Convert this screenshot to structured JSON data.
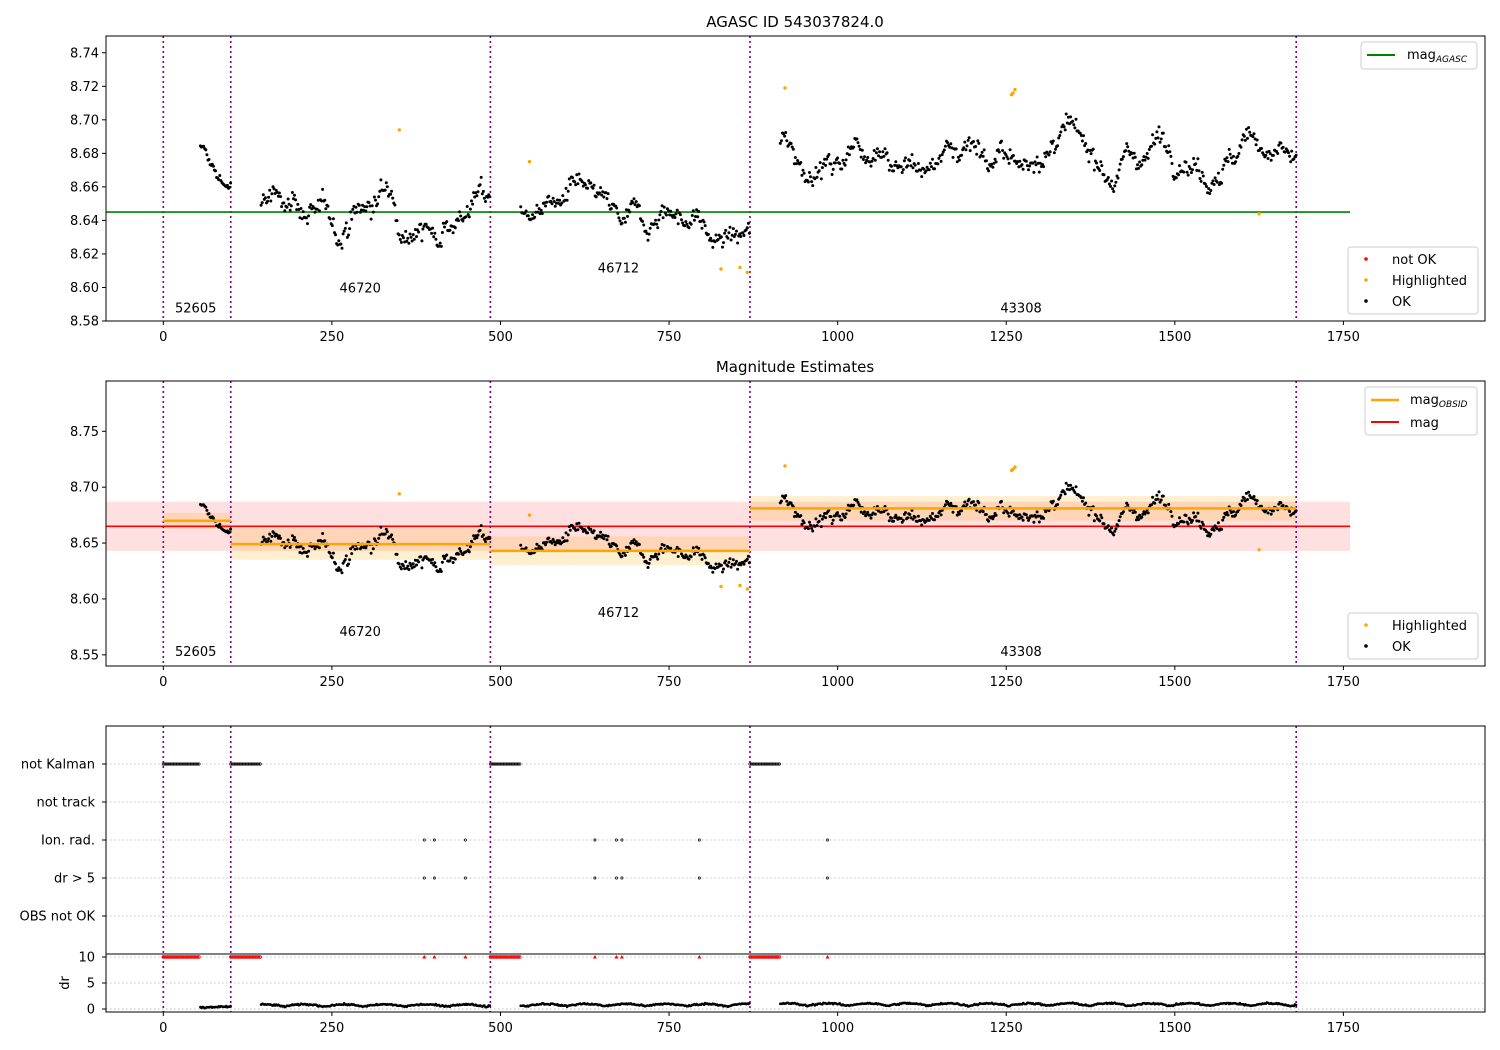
{
  "chart_data": [
    {
      "type": "scatter",
      "title": "AGASC ID 543037824.0",
      "xlim": [
        -85,
        1960
      ],
      "ylim": [
        8.58,
        8.75
      ],
      "x_ticks": [
        0,
        250,
        500,
        750,
        1000,
        1250,
        1500,
        1750
      ],
      "y_ticks": [
        8.58,
        8.6,
        8.62,
        8.64,
        8.66,
        8.68,
        8.7,
        8.72,
        8.74
      ],
      "y_tick_labels": [
        "8.58",
        "8.60",
        "8.62",
        "8.64",
        "8.66",
        "8.68",
        "8.70",
        "8.72",
        "8.74"
      ],
      "legend_lines": [
        {
          "name": "mag",
          "sub": "AGASC",
          "color": "#008000"
        }
      ],
      "legend_points": [
        {
          "name": "not OK",
          "color": "#ff0000"
        },
        {
          "name": "Highlighted",
          "color": "#ffa500"
        },
        {
          "name": "OK",
          "color": "#000000"
        }
      ],
      "lines": [
        {
          "name": "mag_AGASC",
          "color": "#008000",
          "x": [
            -85,
            1760
          ],
          "y": [
            8.645,
            8.645
          ]
        }
      ],
      "segments_trend": [
        {
          "x": [
            55,
            100
          ],
          "y": [
            8.677,
            8.664
          ],
          "sd": 0.007
        },
        {
          "x": [
            145,
            485
          ],
          "y": [
            8.645,
            8.645
          ],
          "sd": 0.012
        },
        {
          "x": [
            530,
            870
          ],
          "y": [
            8.655,
            8.632
          ],
          "sd": 0.01
        },
        {
          "x": [
            915,
            1680
          ],
          "y": [
            8.68,
            8.68
          ],
          "sd": 0.011
        }
      ],
      "highlighted_points": [
        {
          "x": 350,
          "y": 8.694
        },
        {
          "x": 543,
          "y": 8.675
        },
        {
          "x": 827,
          "y": 8.611
        },
        {
          "x": 855,
          "y": 8.612
        },
        {
          "x": 866,
          "y": 8.609
        },
        {
          "x": 922,
          "y": 8.719
        },
        {
          "x": 1258,
          "y": 8.715
        },
        {
          "x": 1260,
          "y": 8.716
        },
        {
          "x": 1263,
          "y": 8.718
        },
        {
          "x": 1625,
          "y": 8.644
        }
      ],
      "annotations": [
        {
          "text": "52605",
          "x": 48,
          "y": 8.585
        },
        {
          "text": "46720",
          "x": 292,
          "y": 8.597
        },
        {
          "text": "46712",
          "x": 675,
          "y": 8.609
        },
        {
          "text": "43308",
          "x": 1272,
          "y": 8.585
        }
      ]
    },
    {
      "type": "scatter",
      "title": "Magnitude Estimates",
      "xlim": [
        -85,
        1960
      ],
      "ylim": [
        8.54,
        8.795
      ],
      "x_ticks": [
        0,
        250,
        500,
        750,
        1000,
        1250,
        1500,
        1750
      ],
      "y_ticks": [
        8.55,
        8.6,
        8.65,
        8.7,
        8.75
      ],
      "y_tick_labels": [
        "8.55",
        "8.60",
        "8.65",
        "8.70",
        "8.75"
      ],
      "legend_lines": [
        {
          "name": "mag",
          "sub": "OBSID",
          "color": "#ffa500"
        },
        {
          "name": "mag",
          "sub": "",
          "color": "#ff0000"
        }
      ],
      "legend_points": [
        {
          "name": "Highlighted",
          "color": "#ffa500"
        },
        {
          "name": "OK",
          "color": "#000000"
        }
      ],
      "mag_line": {
        "x": [
          -85,
          1760
        ],
        "y": 8.665,
        "band": [
          8.643,
          8.687
        ]
      },
      "obsid_mags": [
        {
          "x": [
            0,
            100
          ],
          "y": 8.67,
          "band": [
            8.663,
            8.677
          ]
        },
        {
          "x": [
            100,
            485
          ],
          "y": 8.649,
          "band": [
            8.635,
            8.663
          ]
        },
        {
          "x": [
            485,
            870
          ],
          "y": 8.643,
          "band": [
            8.63,
            8.656
          ]
        },
        {
          "x": [
            870,
            1680
          ],
          "y": 8.681,
          "band": [
            8.67,
            8.692
          ]
        }
      ],
      "annotations": [
        {
          "text": "52605",
          "x": 48,
          "y": 8.549
        },
        {
          "text": "46720",
          "x": 292,
          "y": 8.567
        },
        {
          "text": "46712",
          "x": 675,
          "y": 8.584
        },
        {
          "text": "43308",
          "x": 1272,
          "y": 8.549
        }
      ]
    },
    {
      "type": "scatter",
      "title": "",
      "xlim": [
        -85,
        1960
      ],
      "x_ticks": [
        0,
        250,
        500,
        750,
        1000,
        1250,
        1500,
        1750
      ],
      "flag_rows": [
        "not Kalman",
        "not track",
        "Ion. rad.",
        "dr > 5",
        "OBS not OK"
      ],
      "flag_ranges": [
        {
          "row": "not Kalman",
          "x": [
            0,
            55
          ]
        },
        {
          "row": "not Kalman",
          "x": [
            100,
            145
          ]
        },
        {
          "row": "not Kalman",
          "x": [
            485,
            530
          ]
        },
        {
          "row": "not Kalman",
          "x": [
            870,
            915
          ]
        }
      ],
      "flag_points": {
        "Ion. rad.": [
          387,
          402,
          448,
          640,
          672,
          680,
          795,
          985
        ],
        "dr > 5": [
          387,
          402,
          448,
          640,
          672,
          680,
          795,
          985
        ]
      },
      "dr_ylabel": "dr",
      "dr_ylim": [
        -0.5,
        10.5
      ],
      "dr_ticks": [
        0,
        5,
        10
      ],
      "dr_tick_labels": [
        "0",
        "5",
        "10"
      ],
      "dr_clipped_x_ranges": [
        [
          0,
          55
        ],
        [
          100,
          145
        ],
        [
          485,
          530
        ],
        [
          870,
          915
        ]
      ],
      "dr_clipped_extra_x": [
        387,
        402,
        448,
        640,
        672,
        680,
        795,
        985
      ],
      "dr_clipped_value": 10,
      "dr_data_ranges": [
        {
          "x": [
            55,
            100
          ],
          "level": 0.4
        },
        {
          "x": [
            145,
            485
          ],
          "level": 0.8
        },
        {
          "x": [
            530,
            870
          ],
          "level": 0.9
        },
        {
          "x": [
            915,
            1680
          ],
          "level": 1.0
        }
      ]
    }
  ],
  "obsid_boundaries": [
    0,
    100,
    485,
    870,
    1680
  ],
  "colors": {
    "ok": "#000000",
    "highlighted": "#ffa500",
    "not_ok": "#ff0000",
    "agasc": "#008000",
    "obs_line": "#800080",
    "mag": "#ff0000",
    "mag_obsid": "#ffa500"
  }
}
